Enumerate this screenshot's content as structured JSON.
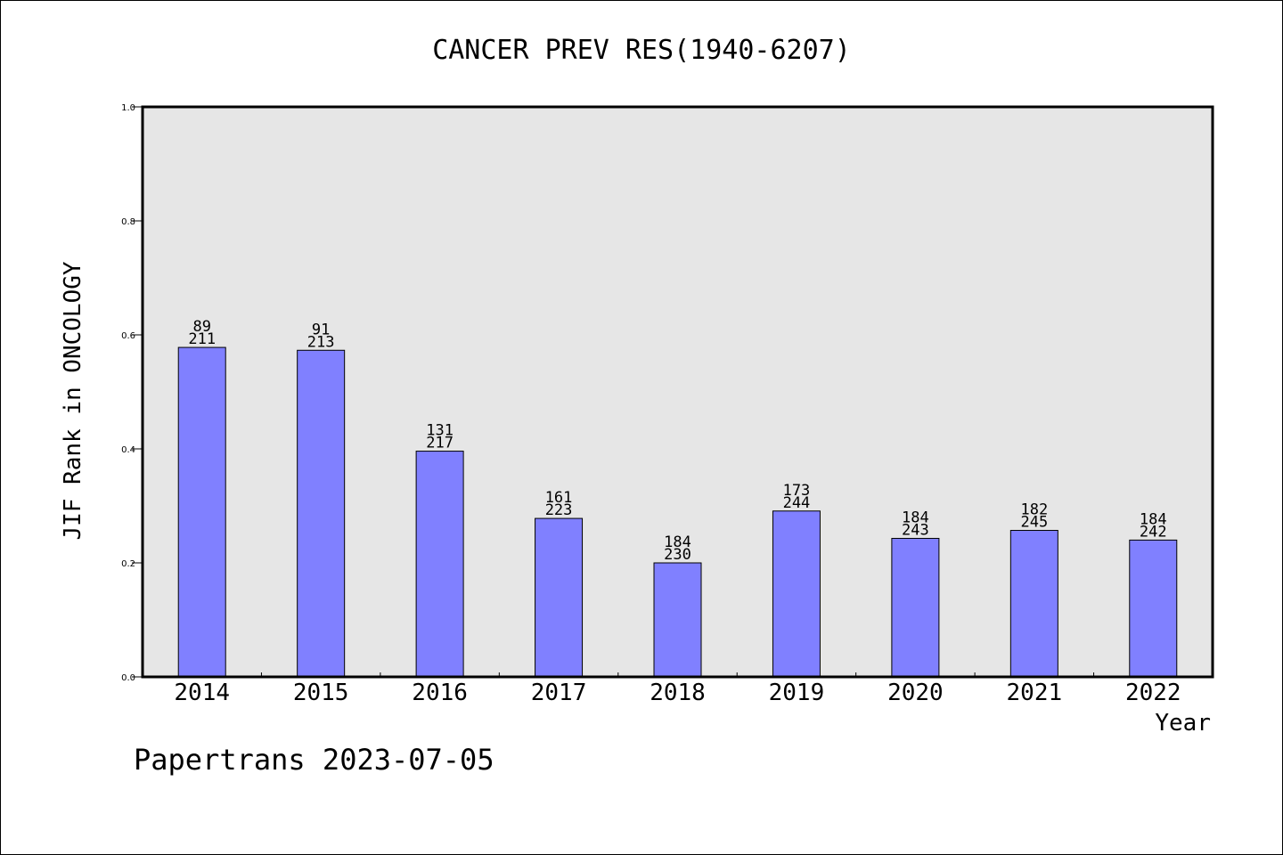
{
  "chart_data": {
    "type": "bar",
    "title": "CANCER PREV RES(1940-6207)",
    "xlabel": "Year",
    "ylabel": "JIF Rank in ONCOLOGY",
    "ylim": [
      0,
      1.0
    ],
    "yticks": [
      "0.0",
      "0.2",
      "0.4",
      "0.6",
      "0.8",
      "1.0"
    ],
    "categories": [
      "2014",
      "2015",
      "2016",
      "2017",
      "2018",
      "2019",
      "2020",
      "2021",
      "2022"
    ],
    "values": [
      0.578,
      0.573,
      0.396,
      0.278,
      0.2,
      0.291,
      0.243,
      0.257,
      0.24
    ],
    "rank": [
      "89",
      "91",
      "131",
      "161",
      "184",
      "173",
      "184",
      "182",
      "184"
    ],
    "total": [
      "211",
      "213",
      "217",
      "223",
      "230",
      "244",
      "243",
      "245",
      "242"
    ],
    "bar_color": "#8080ff",
    "plot_bg": "#e6e6e6",
    "grid": false
  },
  "footer": "Papertrans 2023-07-05"
}
